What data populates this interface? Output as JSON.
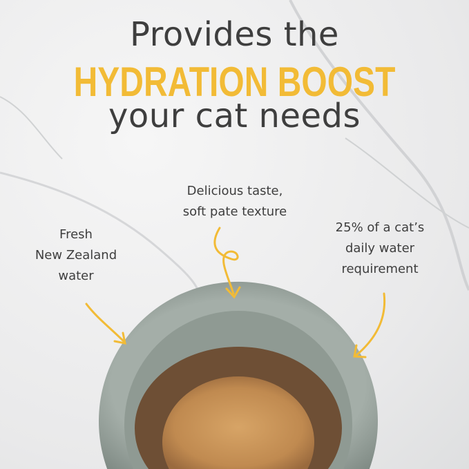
{
  "headline": {
    "line1": "Provides the",
    "line2": "HYDRATION BOOST",
    "line3": "your cat needs"
  },
  "annotations": {
    "center": [
      "Delicious taste,",
      "soft pate texture"
    ],
    "left": [
      "Fresh",
      "New Zealand",
      "water"
    ],
    "right": [
      "25% of a cat’s",
      "daily water",
      "requirement"
    ]
  },
  "colors": {
    "accent": "#f2bb36",
    "text": "#3e3e3e",
    "bowl": "#9aa6a0"
  }
}
